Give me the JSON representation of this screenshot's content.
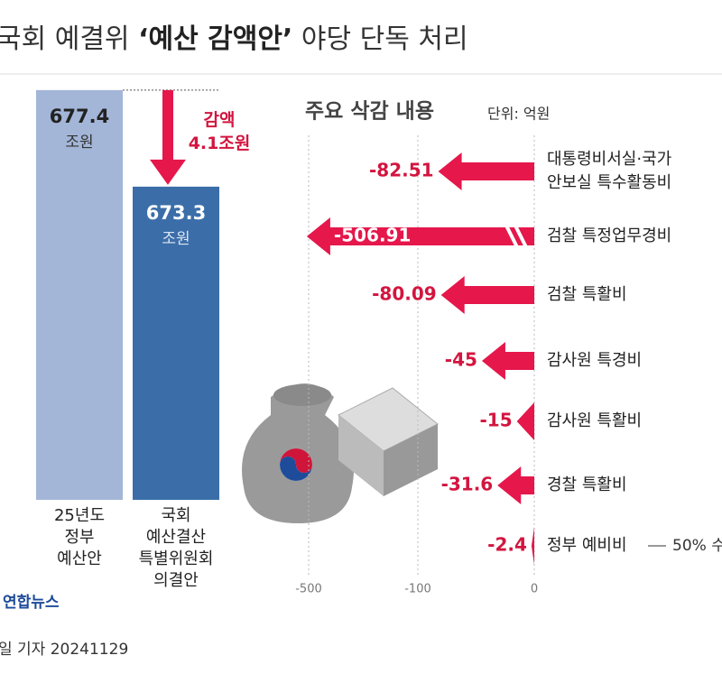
{
  "header": {
    "title_pre": "국회 예결위",
    "title_emph": "‘예산 감액안’",
    "title_post": "야당 단독 처리"
  },
  "chart_data": [
    {
      "type": "bar",
      "categories": [
        "25년도\n정부\n예산안",
        "국회\n예산결산\n특별위원회\n의결안"
      ],
      "values": [
        677.4,
        673.3
      ],
      "unit": "조원",
      "colors": [
        "#a3b6d8",
        "#3b6ea9"
      ],
      "ylim": [
        660,
        680
      ],
      "annotation": "감액\n4.1조원"
    },
    {
      "type": "hbar-arrow",
      "title": "주요 삭감 내용",
      "subtitle": "단위: 억원",
      "categories": [
        "대통령비서실·국가\n안보실 특수활동비",
        "검찰 특정업무경비",
        "검찰 특활비",
        "감사원 특경비",
        "감사원 특활비",
        "경찰 특활비",
        "정부 예비비"
      ],
      "values": [
        -82.51,
        -506.91,
        -80.09,
        -45,
        -15,
        -31.6,
        -2.4
      ],
      "color": "#e5174b",
      "xticks": [
        -500,
        -100,
        0
      ],
      "grid": true,
      "note": "50% 수"
    }
  ],
  "footer": {
    "source": "연합뉴스",
    "credit": "일 기자 20241129"
  }
}
